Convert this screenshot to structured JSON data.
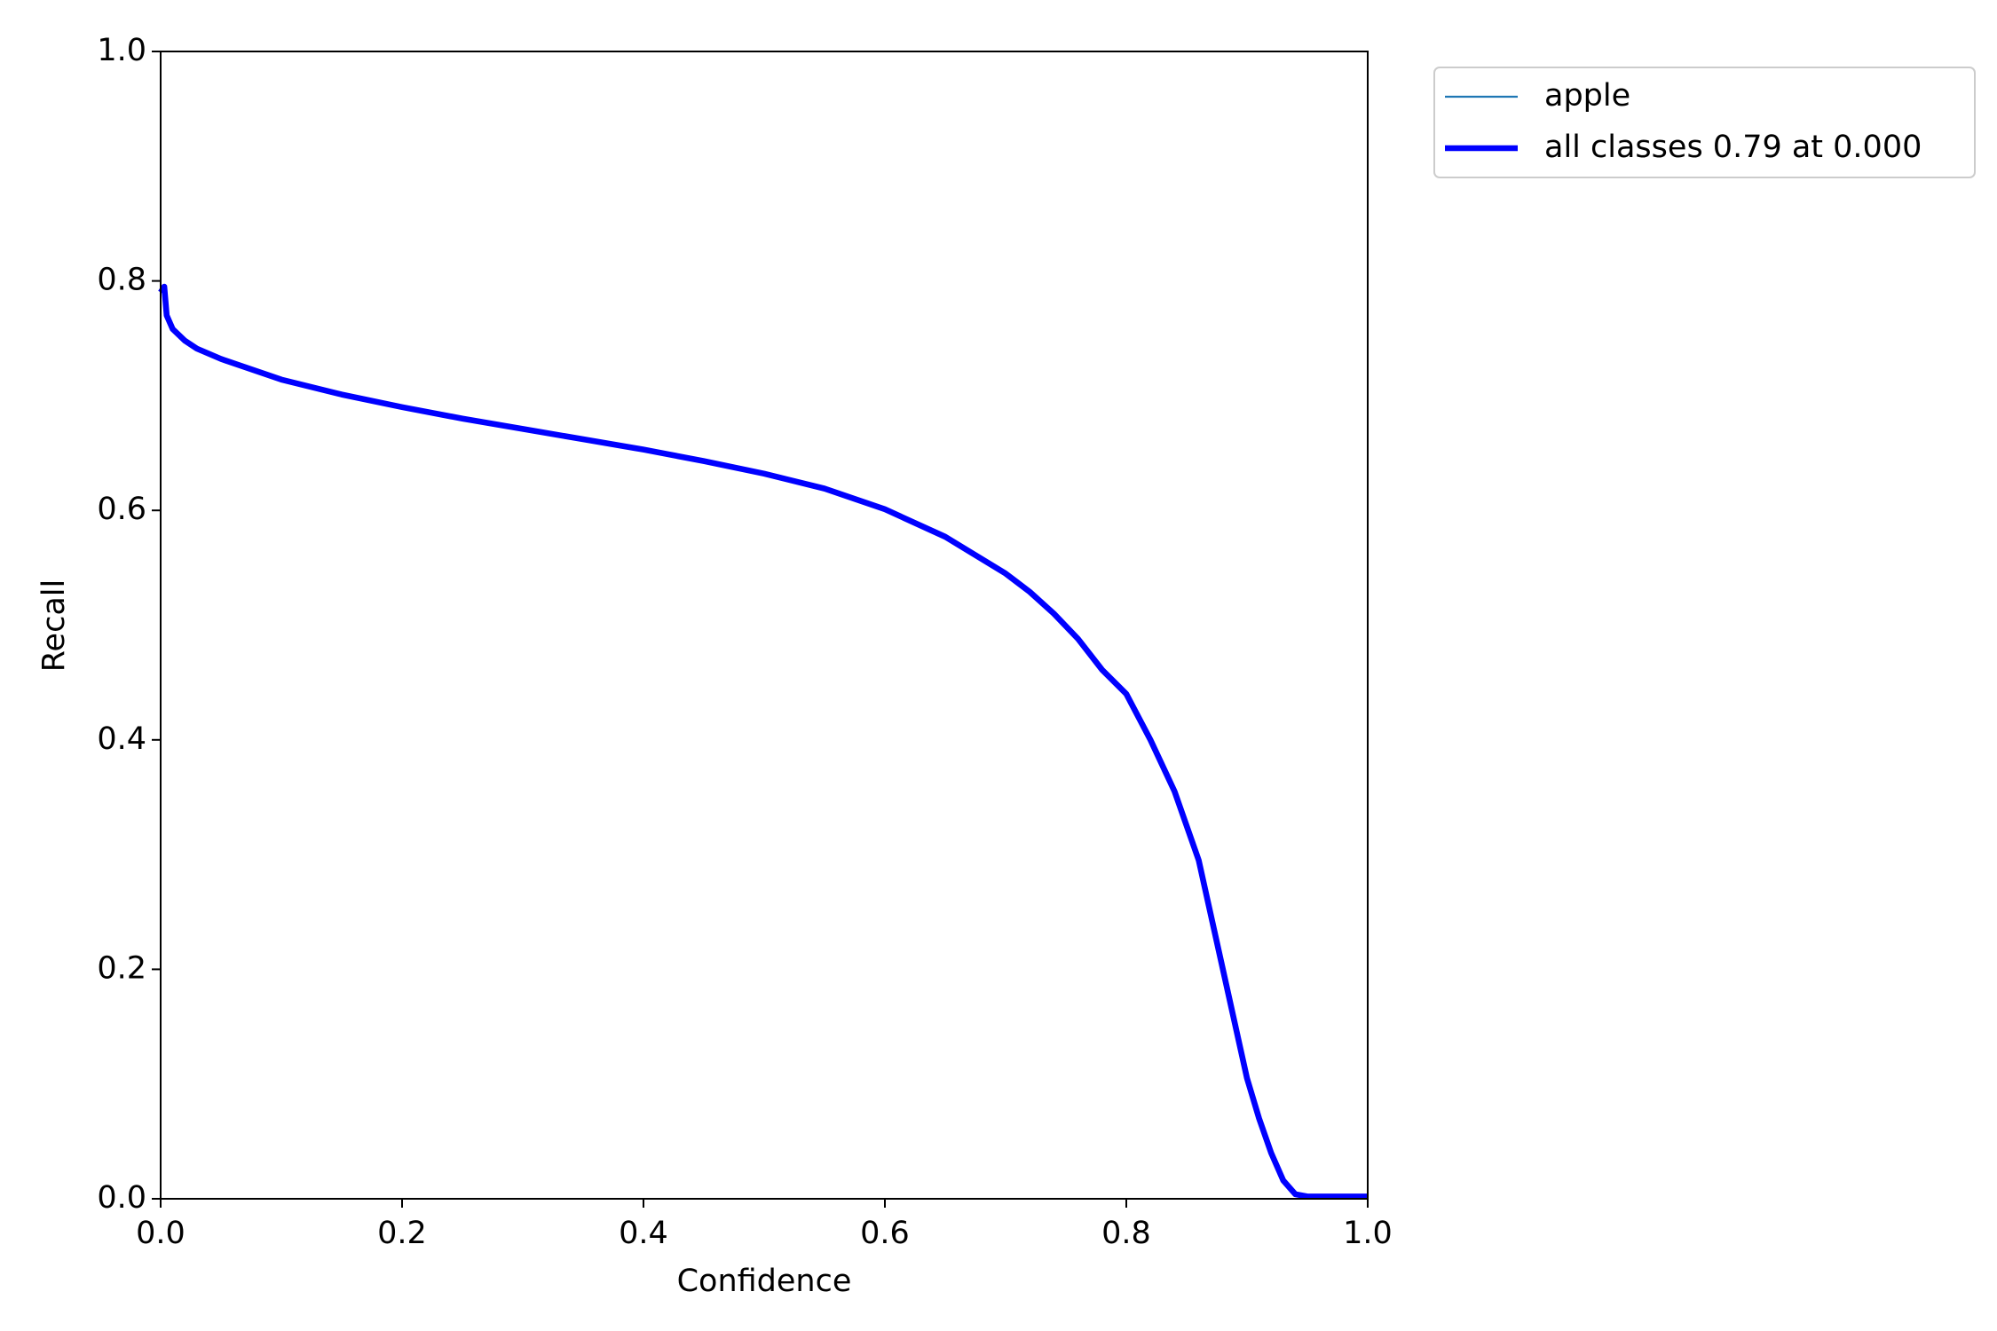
{
  "chart_data": {
    "type": "line",
    "xlabel": "Confidence",
    "ylabel": "Recall",
    "x": [
      0,
      0.003,
      0.005,
      0.01,
      0.02,
      0.03,
      0.05,
      0.1,
      0.15,
      0.2,
      0.25,
      0.3,
      0.35,
      0.4,
      0.45,
      0.5,
      0.55,
      0.6,
      0.65,
      0.7,
      0.72,
      0.74,
      0.76,
      0.78,
      0.8,
      0.82,
      0.84,
      0.86,
      0.88,
      0.9,
      0.91,
      0.92,
      0.93,
      0.94,
      0.95,
      1.0
    ],
    "series": [
      {
        "name": "apple",
        "color": "#1f77b4",
        "linewidth": 1,
        "values": [
          0.79,
          0.795,
          0.77,
          0.758,
          0.748,
          0.741,
          0.732,
          0.714,
          0.701,
          0.69,
          0.68,
          0.671,
          0.662,
          0.653,
          0.643,
          0.632,
          0.619,
          0.601,
          0.577,
          0.545,
          0.529,
          0.51,
          0.488,
          0.461,
          0.44,
          0.4,
          0.355,
          0.295,
          0.2,
          0.105,
          0.07,
          0.04,
          0.016,
          0.004,
          0.002,
          0.002
        ]
      },
      {
        "name": "all classes 0.79 at 0.000",
        "color": "#0000ff",
        "linewidth": 3,
        "values": [
          0.79,
          0.795,
          0.77,
          0.758,
          0.748,
          0.741,
          0.732,
          0.714,
          0.701,
          0.69,
          0.68,
          0.671,
          0.662,
          0.653,
          0.643,
          0.632,
          0.619,
          0.601,
          0.577,
          0.545,
          0.529,
          0.51,
          0.488,
          0.461,
          0.44,
          0.4,
          0.355,
          0.295,
          0.2,
          0.105,
          0.07,
          0.04,
          0.016,
          0.004,
          0.002,
          0.002
        ]
      }
    ],
    "xlim": [
      0,
      1
    ],
    "ylim": [
      0,
      1
    ],
    "xticks": [
      {
        "value": 0,
        "label": "0.0"
      },
      0.2,
      0.4,
      0.6,
      0.8,
      {
        "value": 1,
        "label": "1.0"
      }
    ],
    "yticks": [
      {
        "value": 0,
        "label": "0.0"
      },
      0.2,
      0.4,
      0.6,
      0.8,
      {
        "value": 1,
        "label": "1.0"
      }
    ]
  }
}
